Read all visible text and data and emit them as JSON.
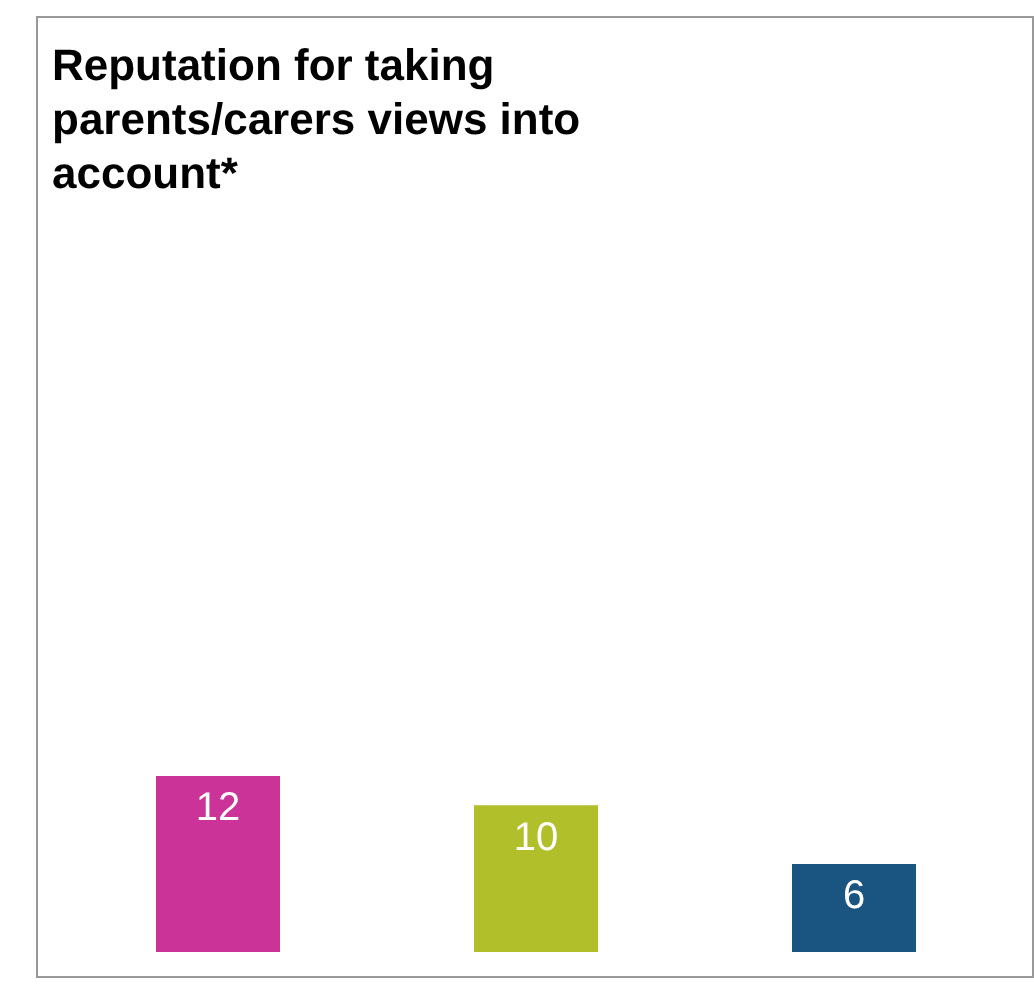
{
  "chart_data": {
    "type": "bar",
    "title": "Reputation for taking parents/carers views into account*",
    "categories": [
      null,
      null,
      null
    ],
    "values": [
      12,
      10,
      6
    ],
    "colors": [
      "#cc3399",
      "#b0bf2a",
      "#1a5480"
    ],
    "data_labels": true,
    "legend": false,
    "grid": false
  }
}
